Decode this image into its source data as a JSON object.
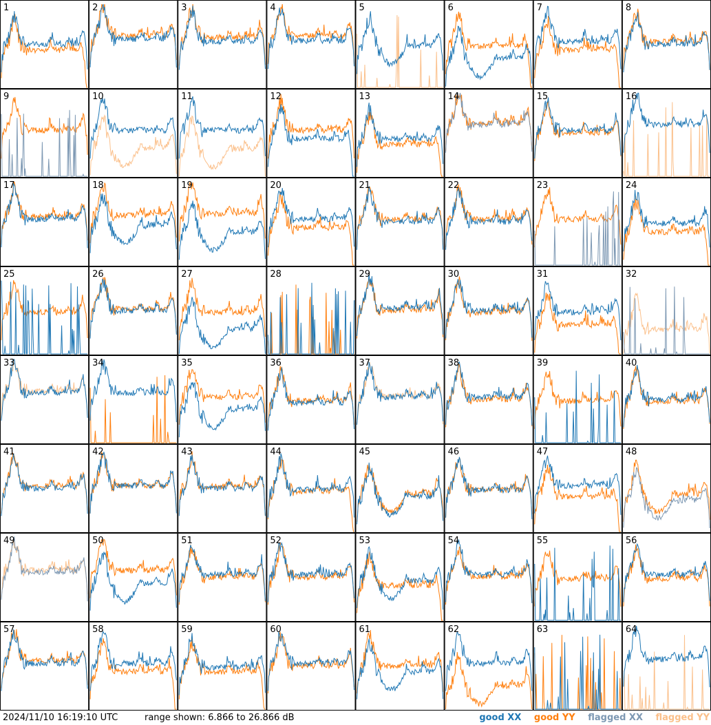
{
  "footer": {
    "timestamp": "2024/11/10 16:19:10 UTC",
    "range_text": "range shown: 6.866 to 26.866 dB"
  },
  "legend": {
    "good_xx": "good XX",
    "good_yy": "good YY",
    "flagged_xx": "flagged XX",
    "flagged_yy": "flagged YY"
  },
  "colors": {
    "good_xx": "#1f77b4",
    "good_yy": "#ff7f0e",
    "flagged_xx": "#7d98b3",
    "flagged_yy": "#fbc08b"
  },
  "chart_data": {
    "type": "line",
    "title": "",
    "xlabel": "",
    "ylabel": "",
    "ylim": [
      6.866,
      26.866
    ],
    "unit": "dB",
    "grid": {
      "rows": 8,
      "cols": 8
    },
    "panel_labels": [
      "1",
      "2",
      "3",
      "4",
      "5",
      "6",
      "7",
      "8",
      "9",
      "10",
      "11",
      "12",
      "13",
      "14",
      "15",
      "16",
      "17",
      "18",
      "19",
      "20",
      "21",
      "22",
      "23",
      "24",
      "25",
      "26",
      "27",
      "28",
      "29",
      "30",
      "31",
      "32",
      "33",
      "34",
      "35",
      "36",
      "37",
      "38",
      "39",
      "40",
      "41",
      "42",
      "43",
      "44",
      "45",
      "46",
      "47",
      "48",
      "49",
      "50",
      "51",
      "52",
      "53",
      "54",
      "55",
      "56",
      "57",
      "58",
      "59",
      "60",
      "61",
      "62",
      "63",
      "64"
    ],
    "panels": [
      {
        "n": 1,
        "xx": {
          "s": "good",
          "p": "normal",
          "lvl": 0.52
        },
        "yy": {
          "s": "good",
          "p": "rolloff",
          "lvl": 0.45
        }
      },
      {
        "n": 2,
        "xx": {
          "s": "good",
          "p": "normal",
          "lvl": 0.58
        },
        "yy": {
          "s": "good",
          "p": "normal",
          "lvl": 0.62
        }
      },
      {
        "n": 3,
        "xx": {
          "s": "good",
          "p": "normal",
          "lvl": 0.55
        },
        "yy": {
          "s": "good",
          "p": "normal",
          "lvl": 0.6
        }
      },
      {
        "n": 4,
        "xx": {
          "s": "good",
          "p": "normal",
          "lvl": 0.56
        },
        "yy": {
          "s": "good",
          "p": "normal",
          "lvl": 0.62
        }
      },
      {
        "n": 5,
        "xx": {
          "s": "good",
          "p": "dip",
          "lvl": 0.5
        },
        "yy": {
          "s": "flagged",
          "p": "spikes",
          "lvl": 0.0
        }
      },
      {
        "n": 6,
        "xx": {
          "s": "good",
          "p": "dip",
          "lvl": 0.35
        },
        "yy": {
          "s": "good",
          "p": "rolloff",
          "lvl": 0.5
        }
      },
      {
        "n": 7,
        "xx": {
          "s": "good",
          "p": "normal",
          "lvl": 0.55
        },
        "yy": {
          "s": "good",
          "p": "rolloff",
          "lvl": 0.45
        }
      },
      {
        "n": 8,
        "xx": {
          "s": "good",
          "p": "normal",
          "lvl": 0.52
        },
        "yy": {
          "s": "good",
          "p": "normal",
          "lvl": 0.55
        }
      },
      {
        "n": 9,
        "xx": {
          "s": "flagged",
          "p": "spikes",
          "lvl": 0.0
        },
        "yy": {
          "s": "good",
          "p": "normal",
          "lvl": 0.55
        }
      },
      {
        "n": 10,
        "xx": {
          "s": "good",
          "p": "normal",
          "lvl": 0.55
        },
        "yy": {
          "s": "flagged",
          "p": "dip",
          "lvl": 0.35
        }
      },
      {
        "n": 11,
        "xx": {
          "s": "good",
          "p": "normal",
          "lvl": 0.55
        },
        "yy": {
          "s": "flagged",
          "p": "dip",
          "lvl": 0.33
        }
      },
      {
        "n": 12,
        "xx": {
          "s": "good",
          "p": "rolloff",
          "lvl": 0.45
        },
        "yy": {
          "s": "good",
          "p": "normal",
          "lvl": 0.55
        }
      },
      {
        "n": 13,
        "xx": {
          "s": "good",
          "p": "normal",
          "lvl": 0.45
        },
        "yy": {
          "s": "good",
          "p": "rolloff",
          "lvl": 0.38
        }
      },
      {
        "n": 14,
        "xx": {
          "s": "flagged",
          "p": "normal",
          "lvl": 0.62
        },
        "yy": {
          "s": "good",
          "p": "normal",
          "lvl": 0.64
        }
      },
      {
        "n": 15,
        "xx": {
          "s": "good",
          "p": "normal",
          "lvl": 0.55
        },
        "yy": {
          "s": "good",
          "p": "normal",
          "lvl": 0.52
        }
      },
      {
        "n": 16,
        "xx": {
          "s": "good",
          "p": "normal",
          "lvl": 0.62
        },
        "yy": {
          "s": "flagged",
          "p": "spikes",
          "lvl": 0.0
        }
      },
      {
        "n": 17,
        "xx": {
          "s": "good",
          "p": "normal",
          "lvl": 0.55
        },
        "yy": {
          "s": "good",
          "p": "normal",
          "lvl": 0.58
        }
      },
      {
        "n": 18,
        "xx": {
          "s": "good",
          "p": "dip",
          "lvl": 0.48
        },
        "yy": {
          "s": "good",
          "p": "normal",
          "lvl": 0.6
        }
      },
      {
        "n": 19,
        "xx": {
          "s": "good",
          "p": "dip",
          "lvl": 0.4
        },
        "yy": {
          "s": "good",
          "p": "normal",
          "lvl": 0.62
        }
      },
      {
        "n": 20,
        "xx": {
          "s": "good",
          "p": "normal",
          "lvl": 0.55
        },
        "yy": {
          "s": "good",
          "p": "rolloff",
          "lvl": 0.45
        }
      },
      {
        "n": 21,
        "xx": {
          "s": "good",
          "p": "normal",
          "lvl": 0.52
        },
        "yy": {
          "s": "good",
          "p": "normal",
          "lvl": 0.55
        }
      },
      {
        "n": 22,
        "xx": {
          "s": "good",
          "p": "normal",
          "lvl": 0.52
        },
        "yy": {
          "s": "good",
          "p": "normal",
          "lvl": 0.55
        }
      },
      {
        "n": 23,
        "xx": {
          "s": "flagged",
          "p": "spikes",
          "lvl": 0.0
        },
        "yy": {
          "s": "good",
          "p": "normal",
          "lvl": 0.55
        }
      },
      {
        "n": 24,
        "xx": {
          "s": "good",
          "p": "normal",
          "lvl": 0.5
        },
        "yy": {
          "s": "good",
          "p": "rolloff",
          "lvl": 0.4
        }
      },
      {
        "n": 25,
        "xx": {
          "s": "good",
          "p": "spikes",
          "lvl": 0.0
        },
        "yy": {
          "s": "good",
          "p": "normal",
          "lvl": 0.5
        }
      },
      {
        "n": 26,
        "xx": {
          "s": "good",
          "p": "normal",
          "lvl": 0.52
        },
        "yy": {
          "s": "good",
          "p": "normal",
          "lvl": 0.54
        }
      },
      {
        "n": 27,
        "xx": {
          "s": "good",
          "p": "dip",
          "lvl": 0.3
        },
        "yy": {
          "s": "good",
          "p": "normal",
          "lvl": 0.5
        }
      },
      {
        "n": 28,
        "xx": {
          "s": "good",
          "p": "spikes",
          "lvl": 0.0
        },
        "yy": {
          "s": "good",
          "p": "spikes",
          "lvl": 0.0
        }
      },
      {
        "n": 29,
        "xx": {
          "s": "good",
          "p": "normal",
          "lvl": 0.55
        },
        "yy": {
          "s": "good",
          "p": "normal",
          "lvl": 0.52
        }
      },
      {
        "n": 30,
        "xx": {
          "s": "good",
          "p": "normal",
          "lvl": 0.52
        },
        "yy": {
          "s": "good",
          "p": "normal",
          "lvl": 0.5
        }
      },
      {
        "n": 31,
        "xx": {
          "s": "good",
          "p": "normal",
          "lvl": 0.5
        },
        "yy": {
          "s": "good",
          "p": "rolloff",
          "lvl": 0.35
        }
      },
      {
        "n": 32,
        "xx": {
          "s": "flagged",
          "p": "spikes",
          "lvl": 0.0
        },
        "yy": {
          "s": "flagged",
          "p": "normal",
          "lvl": 0.3
        }
      },
      {
        "n": 33,
        "xx": {
          "s": "good",
          "p": "normal",
          "lvl": 0.6
        },
        "yy": {
          "s": "flagged",
          "p": "normal",
          "lvl": 0.62
        }
      },
      {
        "n": 34,
        "xx": {
          "s": "good",
          "p": "normal",
          "lvl": 0.6
        },
        "yy": {
          "s": "good",
          "p": "spikes",
          "lvl": 0.0
        }
      },
      {
        "n": 35,
        "xx": {
          "s": "good",
          "p": "dip",
          "lvl": 0.4
        },
        "yy": {
          "s": "good",
          "p": "normal",
          "lvl": 0.55
        }
      },
      {
        "n": 36,
        "xx": {
          "s": "good",
          "p": "normal",
          "lvl": 0.48
        },
        "yy": {
          "s": "good",
          "p": "normal",
          "lvl": 0.5
        }
      },
      {
        "n": 37,
        "xx": {
          "s": "good",
          "p": "normal",
          "lvl": 0.55
        },
        "yy": {
          "s": "flagged",
          "p": "normal",
          "lvl": 0.56
        }
      },
      {
        "n": 38,
        "xx": {
          "s": "good",
          "p": "normal",
          "lvl": 0.55
        },
        "yy": {
          "s": "good",
          "p": "normal",
          "lvl": 0.52
        }
      },
      {
        "n": 39,
        "xx": {
          "s": "good",
          "p": "spikes",
          "lvl": 0.0
        },
        "yy": {
          "s": "good",
          "p": "normal",
          "lvl": 0.5
        }
      },
      {
        "n": 40,
        "xx": {
          "s": "good",
          "p": "normal",
          "lvl": 0.52
        },
        "yy": {
          "s": "good",
          "p": "normal",
          "lvl": 0.5
        }
      },
      {
        "n": 41,
        "xx": {
          "s": "good",
          "p": "normal",
          "lvl": 0.52
        },
        "yy": {
          "s": "good",
          "p": "normal",
          "lvl": 0.55
        }
      },
      {
        "n": 42,
        "xx": {
          "s": "good",
          "p": "normal",
          "lvl": 0.55
        },
        "yy": {
          "s": "good",
          "p": "normal",
          "lvl": 0.55
        }
      },
      {
        "n": 43,
        "xx": {
          "s": "good",
          "p": "normal",
          "lvl": 0.52
        },
        "yy": {
          "s": "good",
          "p": "normal",
          "lvl": 0.54
        }
      },
      {
        "n": 44,
        "xx": {
          "s": "good",
          "p": "normal",
          "lvl": 0.5
        },
        "yy": {
          "s": "good",
          "p": "rolloff",
          "lvl": 0.48
        }
      },
      {
        "n": 45,
        "xx": {
          "s": "good",
          "p": "dip",
          "lvl": 0.42
        },
        "yy": {
          "s": "good",
          "p": "dip",
          "lvl": 0.45
        }
      },
      {
        "n": 46,
        "xx": {
          "s": "good",
          "p": "normal",
          "lvl": 0.5
        },
        "yy": {
          "s": "good",
          "p": "normal",
          "lvl": 0.5
        }
      },
      {
        "n": 47,
        "xx": {
          "s": "good",
          "p": "normal",
          "lvl": 0.55
        },
        "yy": {
          "s": "good",
          "p": "rolloff",
          "lvl": 0.42
        }
      },
      {
        "n": 48,
        "xx": {
          "s": "flagged",
          "p": "dip",
          "lvl": 0.38
        },
        "yy": {
          "s": "good",
          "p": "dip",
          "lvl": 0.45
        }
      },
      {
        "n": 49,
        "xx": {
          "s": "flagged",
          "p": "normal",
          "lvl": 0.58
        },
        "yy": {
          "s": "flagged",
          "p": "normal",
          "lvl": 0.6
        }
      },
      {
        "n": 50,
        "xx": {
          "s": "good",
          "p": "dip",
          "lvl": 0.45
        },
        "yy": {
          "s": "good",
          "p": "normal",
          "lvl": 0.6
        }
      },
      {
        "n": 51,
        "xx": {
          "s": "good",
          "p": "normal",
          "lvl": 0.55
        },
        "yy": {
          "s": "good",
          "p": "normal",
          "lvl": 0.52
        }
      },
      {
        "n": 52,
        "xx": {
          "s": "good",
          "p": "normal",
          "lvl": 0.55
        },
        "yy": {
          "s": "good",
          "p": "normal",
          "lvl": 0.52
        }
      },
      {
        "n": 53,
        "xx": {
          "s": "good",
          "p": "dip",
          "lvl": 0.48
        },
        "yy": {
          "s": "good",
          "p": "rolloff",
          "lvl": 0.42
        }
      },
      {
        "n": 54,
        "xx": {
          "s": "good",
          "p": "normal",
          "lvl": 0.55
        },
        "yy": {
          "s": "good",
          "p": "normal",
          "lvl": 0.52
        }
      },
      {
        "n": 55,
        "xx": {
          "s": "good",
          "p": "spikes",
          "lvl": 0.0
        },
        "yy": {
          "s": "good",
          "p": "normal",
          "lvl": 0.5
        }
      },
      {
        "n": 56,
        "xx": {
          "s": "good",
          "p": "normal",
          "lvl": 0.55
        },
        "yy": {
          "s": "good",
          "p": "normal",
          "lvl": 0.5
        }
      },
      {
        "n": 57,
        "xx": {
          "s": "good",
          "p": "normal",
          "lvl": 0.55
        },
        "yy": {
          "s": "good",
          "p": "normal",
          "lvl": 0.58
        }
      },
      {
        "n": 58,
        "xx": {
          "s": "good",
          "p": "normal",
          "lvl": 0.55
        },
        "yy": {
          "s": "good",
          "p": "rolloff",
          "lvl": 0.45
        }
      },
      {
        "n": 59,
        "xx": {
          "s": "good",
          "p": "normal",
          "lvl": 0.5
        },
        "yy": {
          "s": "good",
          "p": "rolloff",
          "lvl": 0.45
        }
      },
      {
        "n": 60,
        "xx": {
          "s": "good",
          "p": "normal",
          "lvl": 0.55
        },
        "yy": {
          "s": "good",
          "p": "normal",
          "lvl": 0.52
        }
      },
      {
        "n": 61,
        "xx": {
          "s": "good",
          "p": "dip",
          "lvl": 0.45
        },
        "yy": {
          "s": "good",
          "p": "normal",
          "lvl": 0.52
        }
      },
      {
        "n": 62,
        "xx": {
          "s": "good",
          "p": "normal",
          "lvl": 0.55
        },
        "yy": {
          "s": "good",
          "p": "dip",
          "lvl": 0.28
        }
      },
      {
        "n": 63,
        "xx": {
          "s": "good",
          "p": "spikes",
          "lvl": 0.0
        },
        "yy": {
          "s": "good",
          "p": "spikes",
          "lvl": 0.0
        }
      },
      {
        "n": 64,
        "xx": {
          "s": "good",
          "p": "normal",
          "lvl": 0.6
        },
        "yy": {
          "s": "flagged",
          "p": "spikes",
          "lvl": 0.0
        }
      }
    ]
  }
}
